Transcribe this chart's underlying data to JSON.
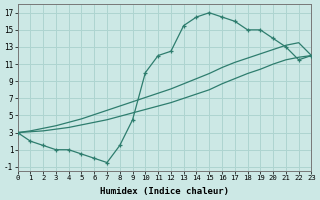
{
  "background_color": "#cce8e5",
  "grid_color": "#aed4d0",
  "line_color": "#2e7d6e",
  "xlim": [
    0,
    23
  ],
  "ylim": [
    -1.5,
    18
  ],
  "xticks": [
    0,
    1,
    2,
    3,
    4,
    5,
    6,
    7,
    8,
    9,
    10,
    11,
    12,
    13,
    14,
    15,
    16,
    17,
    18,
    19,
    20,
    21,
    22,
    23
  ],
  "yticks": [
    -1,
    1,
    3,
    5,
    7,
    9,
    11,
    13,
    15,
    17
  ],
  "xlabel": "Humidex (Indice chaleur)",
  "curve1_x": [
    0,
    1,
    2,
    3,
    4,
    5,
    6,
    7,
    8,
    9,
    10,
    11,
    12,
    13,
    14,
    15,
    16,
    17,
    18,
    19,
    20,
    21,
    22,
    23
  ],
  "curve1_y": [
    3,
    2,
    1.5,
    1,
    1,
    0.5,
    0,
    -0.5,
    1.5,
    4.5,
    10,
    12,
    12.5,
    15.5,
    16.5,
    17,
    16.5,
    16,
    15,
    15,
    14,
    13,
    11.5,
    12
  ],
  "curve2_x": [
    0,
    1,
    2,
    3,
    4,
    5,
    6,
    7,
    8,
    9,
    10,
    11,
    12,
    13,
    14,
    15,
    16,
    17,
    18,
    19,
    20,
    21,
    22,
    23
  ],
  "curve2_y": [
    3,
    3.1,
    3.2,
    3.4,
    3.6,
    3.9,
    4.2,
    4.5,
    4.9,
    5.3,
    5.7,
    6.1,
    6.5,
    7.0,
    7.5,
    8.0,
    8.7,
    9.3,
    9.9,
    10.4,
    11.0,
    11.5,
    11.8,
    12.0
  ],
  "curve3_x": [
    0,
    1,
    2,
    3,
    4,
    5,
    6,
    7,
    8,
    9,
    10,
    11,
    12,
    13,
    14,
    15,
    16,
    17,
    18,
    19,
    20,
    21,
    22,
    23
  ],
  "curve3_y": [
    3,
    3.2,
    3.5,
    3.8,
    4.2,
    4.6,
    5.1,
    5.6,
    6.1,
    6.6,
    7.1,
    7.6,
    8.1,
    8.7,
    9.3,
    9.9,
    10.6,
    11.2,
    11.7,
    12.2,
    12.7,
    13.2,
    13.5,
    12.0
  ]
}
